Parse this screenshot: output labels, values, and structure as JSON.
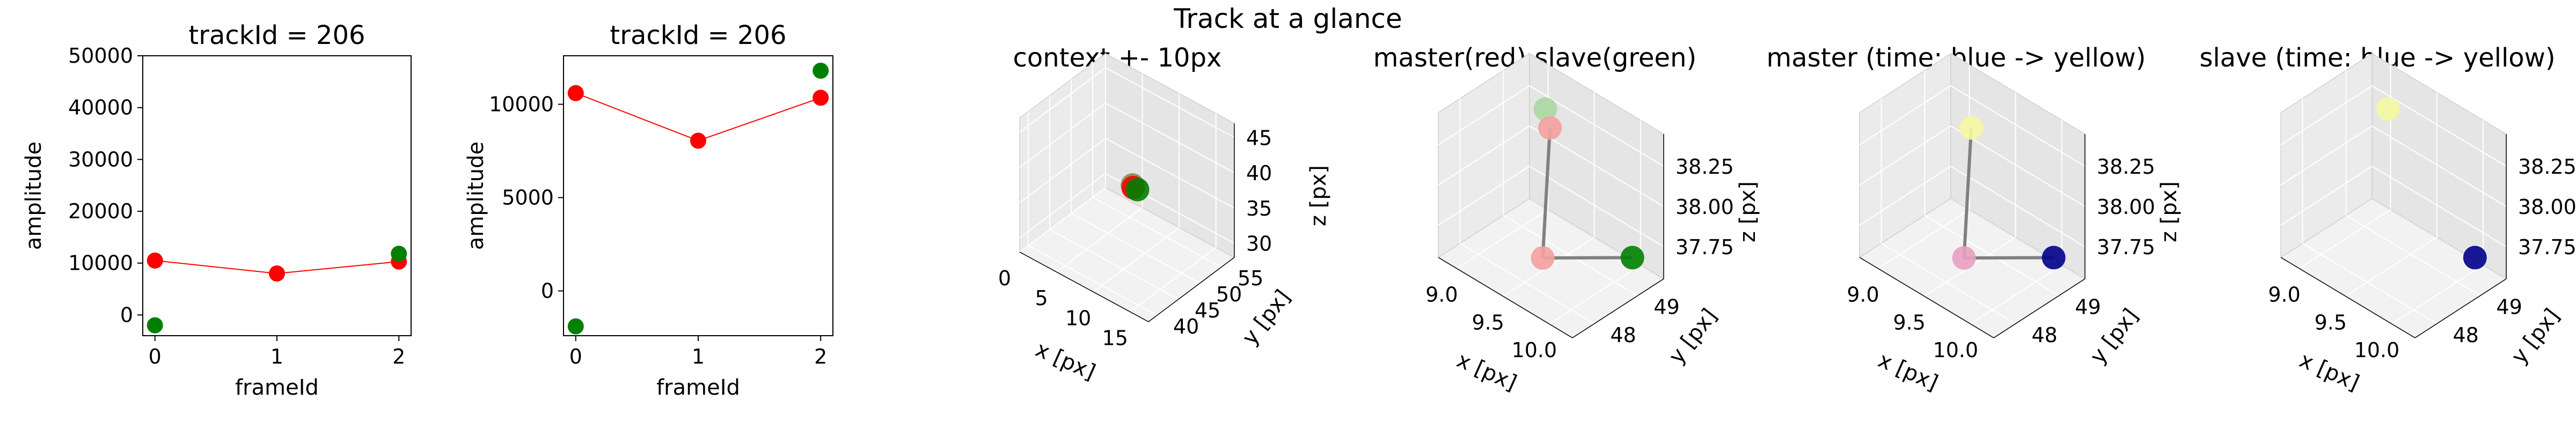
{
  "figure": {
    "suptitle": "Track at a glance"
  },
  "colors": {
    "red": "#ff0000",
    "green": "#008000",
    "navy": "#00008b",
    "light_green": "#a8d8a0",
    "light_red": "#f4a0a0",
    "light_yellow": "#f4f8a0",
    "pink": "#e8a0c0",
    "olive": "#8a8a5a",
    "connector": "#808080"
  },
  "chart_data": [
    {
      "type": "line",
      "title": "trackId = 206",
      "xlabel": "frameId",
      "ylabel": "amplitude",
      "x": [
        0,
        1,
        2
      ],
      "x_ticks": [
        "0",
        "1",
        "2"
      ],
      "y_ticks": [
        "0",
        "10000",
        "20000",
        "30000",
        "40000",
        "50000"
      ],
      "xlim": [
        -0.1,
        2.1
      ],
      "ylim": [
        -4000,
        50000
      ],
      "series": [
        {
          "values": [
            10500,
            8000,
            10300
          ],
          "color": "red",
          "line": true
        },
        {
          "values": [
            -2000,
            null,
            11800
          ],
          "color": "green",
          "line": false
        }
      ]
    },
    {
      "type": "line",
      "title": "trackId = 206",
      "xlabel": "frameId",
      "ylabel": "amplitude",
      "x": [
        0,
        1,
        2
      ],
      "x_ticks": [
        "0",
        "1",
        "2"
      ],
      "y_ticks": [
        "0",
        "5000",
        "10000"
      ],
      "xlim": [
        -0.1,
        2.1
      ],
      "ylim": [
        -2400,
        12600
      ],
      "series": [
        {
          "values": [
            10600,
            8050,
            10350
          ],
          "color": "red",
          "line": true
        },
        {
          "values": [
            -1900,
            null,
            11800
          ],
          "color": "green",
          "line": false
        }
      ]
    },
    {
      "type": "scatter",
      "projection": "3d",
      "title": "context +- 10px",
      "xlabel": "x [px]",
      "ylabel": "y [px]",
      "zlabel": "z [px]",
      "x_ticks": [
        "0",
        "5",
        "10",
        "15"
      ],
      "y_ticks": [
        "40",
        "45",
        "50",
        "55"
      ],
      "z_ticks": [
        "30",
        "35",
        "40",
        "45"
      ],
      "points": [
        {
          "x": 9.5,
          "y": 48,
          "z": 38.3,
          "color": "olive"
        },
        {
          "x": 9.3,
          "y": 48.5,
          "z": 37.6,
          "color": "red"
        },
        {
          "x": 10.0,
          "y": 48.3,
          "z": 37.8,
          "color": "green"
        }
      ]
    },
    {
      "type": "scatter",
      "projection": "3d",
      "title": "master(red) slave(green)",
      "xlabel": "x [px]",
      "ylabel": "y [px]",
      "zlabel": "z [px]",
      "x_ticks": [
        "9.0",
        "9.5",
        "10.0"
      ],
      "y_ticks": [
        "48",
        "49"
      ],
      "z_ticks": [
        "37.75",
        "38.00",
        "38.25"
      ],
      "points": [
        {
          "x": 9.3,
          "y": 48.9,
          "z": 38.4,
          "color": "light_green"
        },
        {
          "x": 9.35,
          "y": 48.9,
          "z": 38.3,
          "color": "light_red"
        },
        {
          "x": 9.6,
          "y": 48.2,
          "z": 37.7,
          "color": "light_red"
        },
        {
          "x": 10.1,
          "y": 49.2,
          "z": 37.7,
          "color": "green"
        }
      ]
    },
    {
      "type": "scatter",
      "projection": "3d",
      "title": "master (time: blue -> yellow)",
      "xlabel": "x [px]",
      "ylabel": "y [px]",
      "zlabel": "z [px]",
      "x_ticks": [
        "9.0",
        "9.5",
        "10.0"
      ],
      "y_ticks": [
        "48",
        "49"
      ],
      "z_ticks": [
        "37.75",
        "38.00",
        "38.25"
      ],
      "points": [
        {
          "x": 9.35,
          "y": 48.9,
          "z": 38.3,
          "color": "light_yellow"
        },
        {
          "x": 9.6,
          "y": 48.2,
          "z": 37.7,
          "color": "pink"
        },
        {
          "x": 10.1,
          "y": 49.2,
          "z": 37.7,
          "color": "navy"
        }
      ]
    },
    {
      "type": "scatter",
      "projection": "3d",
      "title": "slave (time: blue -> yellow)",
      "xlabel": "x [px]",
      "ylabel": "y [px]",
      "zlabel": "z [px]",
      "x_ticks": [
        "9.0",
        "9.5",
        "10.0"
      ],
      "y_ticks": [
        "48",
        "49"
      ],
      "z_ticks": [
        "37.75",
        "38.00",
        "38.25"
      ],
      "points": [
        {
          "x": 9.3,
          "y": 48.9,
          "z": 38.4,
          "color": "light_yellow"
        },
        {
          "x": 10.1,
          "y": 49.2,
          "z": 37.7,
          "color": "navy"
        }
      ]
    }
  ]
}
